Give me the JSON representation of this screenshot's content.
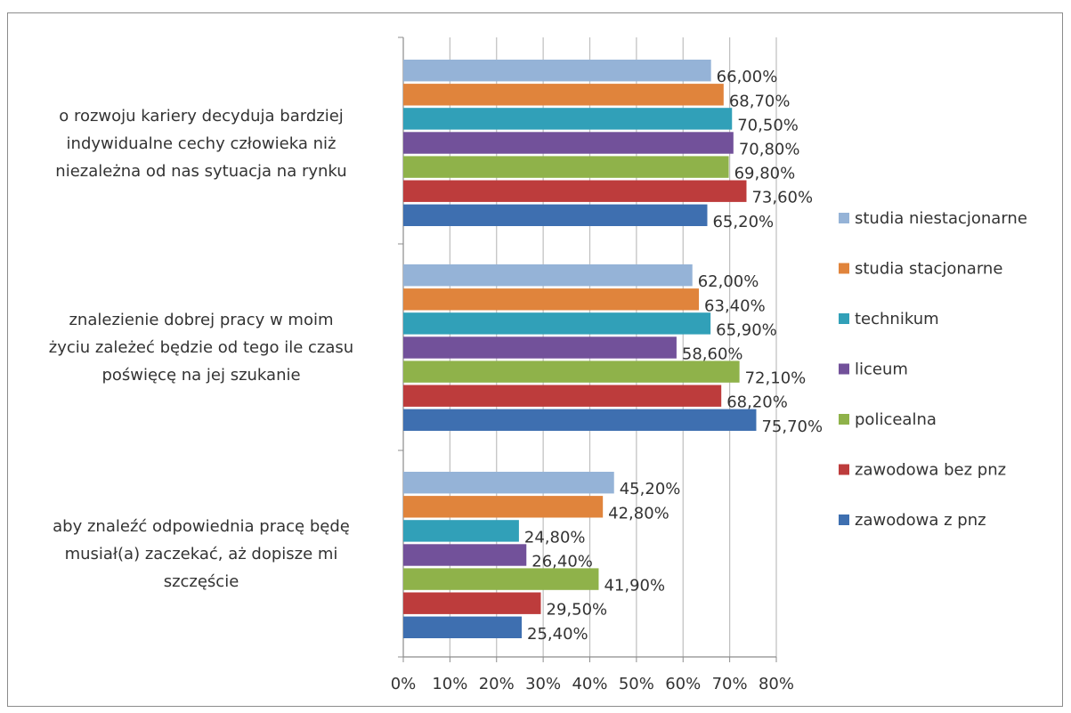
{
  "chart_data": {
    "type": "bar",
    "orientation": "horizontal",
    "title": "",
    "xlabel": "",
    "ylabel": "",
    "xlim": [
      0,
      80
    ],
    "x_ticks": [
      "0%",
      "10%",
      "20%",
      "30%",
      "40%",
      "50%",
      "60%",
      "70%",
      "80%"
    ],
    "grid": "vertical",
    "legend_position": "right",
    "categories": [
      {
        "lines": [
          "o rozwoju kariery decyduja bardziej",
          "indywidualne cechy człowieka niż",
          "niezależna od nas sytuacja na rynku"
        ]
      },
      {
        "lines": [
          "znalezienie dobrej pracy w moim",
          "życiu zależeć będzie od tego ile czasu",
          "poświęcę na jej szukanie"
        ]
      },
      {
        "lines": [
          "aby znaleźć odpowiednia pracę będę",
          "musiał(a) zaczekać, aż dopisze mi",
          "szczęście"
        ]
      }
    ],
    "series": [
      {
        "name": "studia niestacjonarne",
        "color": "#95b3d7",
        "values": [
          66.0,
          62.0,
          45.2
        ],
        "labels": [
          "66,00%",
          "62,00%",
          "45,20%"
        ]
      },
      {
        "name": "studia stacjonarne",
        "color": "#e0843c",
        "values": [
          68.7,
          63.4,
          42.8
        ],
        "labels": [
          "68,70%",
          "63,40%",
          "42,80%"
        ]
      },
      {
        "name": "technikum",
        "color": "#31a0b8",
        "values": [
          70.5,
          65.9,
          24.8
        ],
        "labels": [
          "70,50%",
          "65,90%",
          "24,80%"
        ]
      },
      {
        "name": "liceum",
        "color": "#72519a",
        "values": [
          70.8,
          58.6,
          26.4
        ],
        "labels": [
          "70,80%",
          "58,60%",
          "26,40%"
        ]
      },
      {
        "name": "policealna",
        "color": "#8fb24a",
        "values": [
          69.8,
          72.1,
          41.9
        ],
        "labels": [
          "69,80%",
          "72,10%",
          "41,90%"
        ]
      },
      {
        "name": "zawodowa bez pnz",
        "color": "#bd3c3c",
        "values": [
          73.6,
          68.2,
          29.5
        ],
        "labels": [
          "73,60%",
          "68,20%",
          "29,50%"
        ]
      },
      {
        "name": "zawodowa z pnz",
        "color": "#3e6fb0",
        "values": [
          65.2,
          75.7,
          25.4
        ],
        "labels": [
          "65,20%",
          "75,70%",
          "25,40%"
        ]
      }
    ]
  }
}
